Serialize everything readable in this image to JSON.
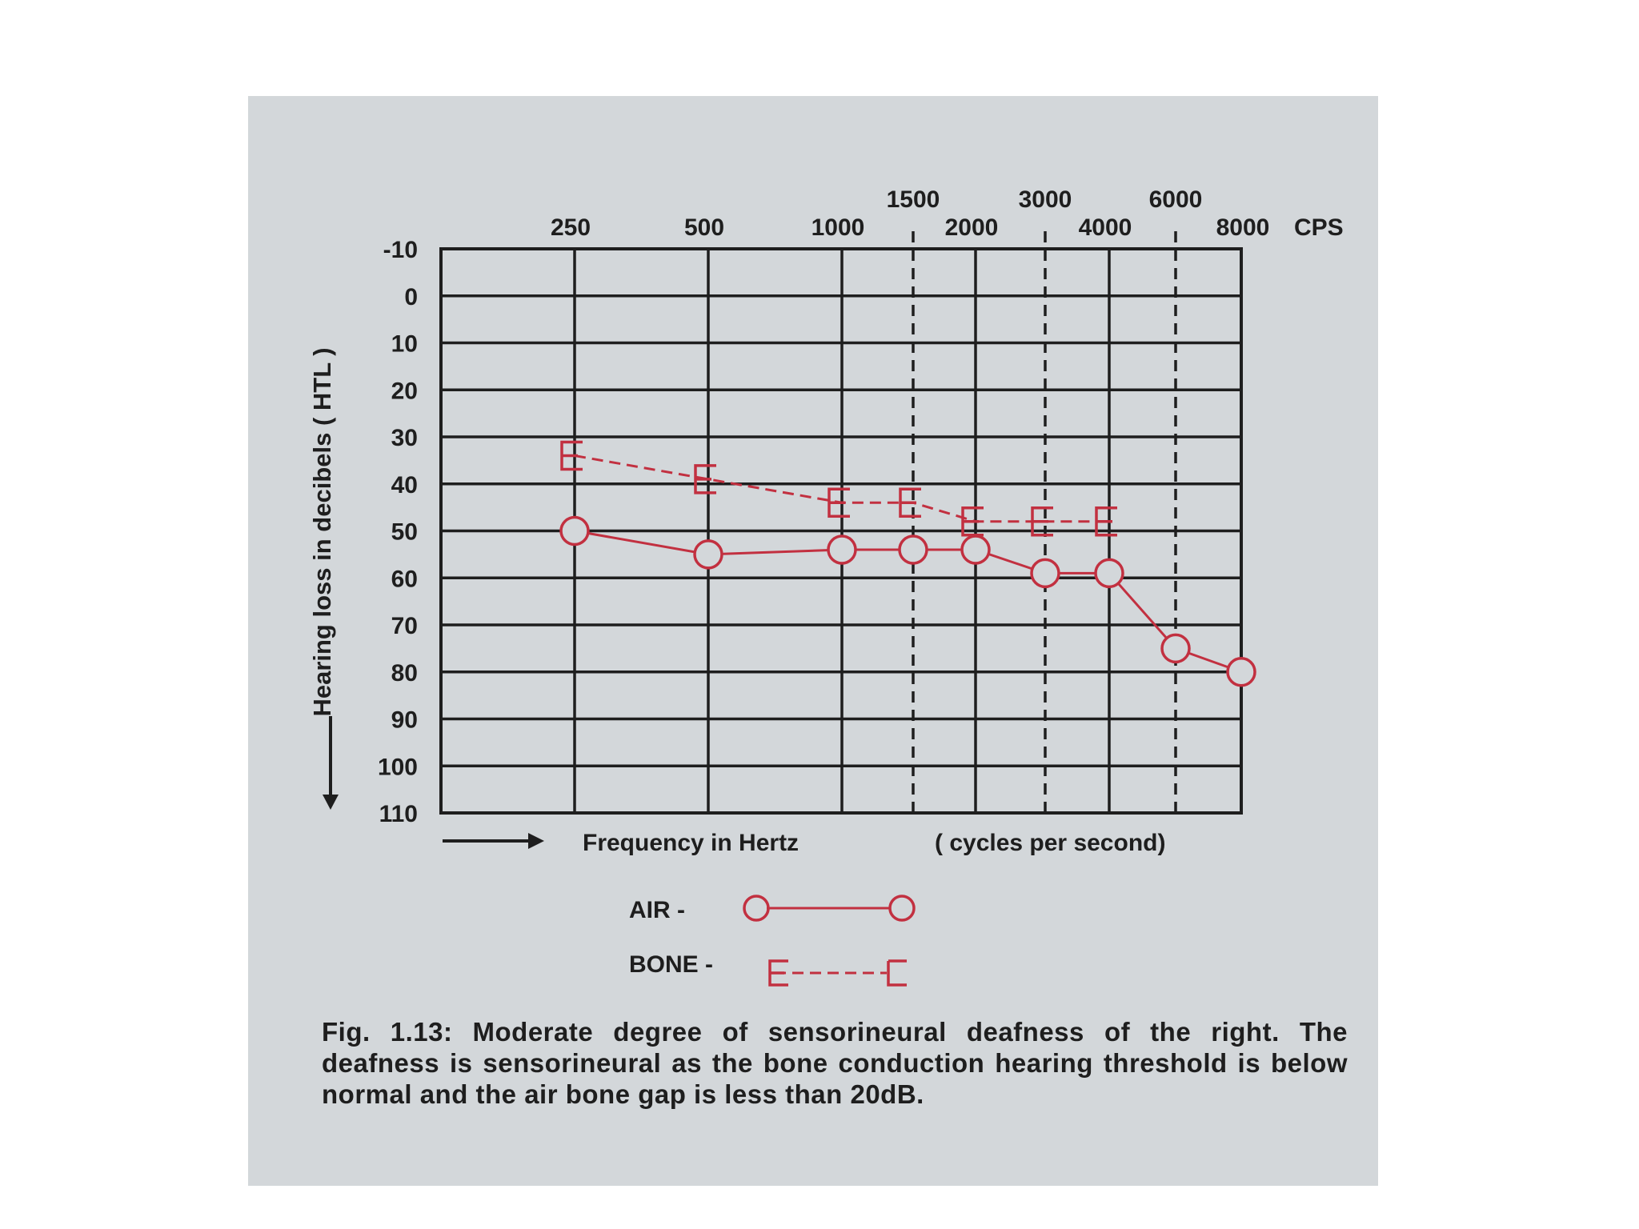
{
  "chart_data": {
    "type": "line",
    "xlabel": "Frequency in Hertz",
    "xlabel_note": "( cycles per second)",
    "x_unit": "CPS",
    "ylabel": "Hearing loss in decibels ( HTL )",
    "y_ticks": [
      "-10",
      "0",
      "10",
      "20",
      "30",
      "40",
      "50",
      "60",
      "70",
      "80",
      "90",
      "100",
      "110"
    ],
    "ylim": [
      -10,
      110
    ],
    "y_inverted": true,
    "x_major_ticks": [
      "250",
      "500",
      "1000",
      "2000",
      "4000",
      "8000"
    ],
    "x_minor_ticks": [
      "1500",
      "3000",
      "6000"
    ],
    "grid": true,
    "series": [
      {
        "name": "AIR",
        "marker": "circle",
        "line": "solid",
        "color": "#c23040",
        "x": [
          "250",
          "500",
          "1000",
          "1500",
          "2000",
          "3000",
          "4000",
          "6000",
          "8000"
        ],
        "y": [
          50,
          55,
          54,
          54,
          54,
          59,
          59,
          75,
          80
        ]
      },
      {
        "name": "BONE",
        "marker": "bracket",
        "line": "dashed",
        "color": "#c23040",
        "x": [
          "250",
          "500",
          "1000",
          "1500",
          "2000",
          "3000",
          "4000"
        ],
        "y": [
          34,
          39,
          44,
          44,
          48,
          48,
          48
        ]
      }
    ],
    "legend": {
      "placement": "bottom-center",
      "air_label": "AIR -",
      "bone_label": "BONE -"
    }
  },
  "caption": "Fig. 1.13: Moderate degree of sensorineural deafness of the right. The deafness is sensorineural as the bone conduction hearing threshold is below normal and the air bone gap is less than 20dB."
}
